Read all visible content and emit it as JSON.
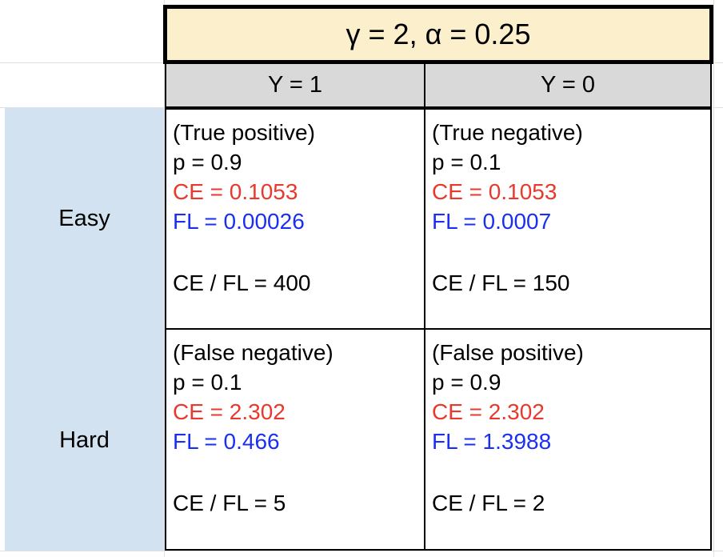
{
  "title": "γ = 2, α = 0.25",
  "columns": [
    {
      "label": "Y = 1"
    },
    {
      "label": "Y = 0"
    }
  ],
  "rows": [
    {
      "label": "Easy",
      "cells": [
        {
          "case": "(True positive)",
          "p": "p = 0.9",
          "ce": "CE = 0.1053",
          "fl": "FL = 0.00026",
          "ratio": "CE / FL = 400"
        },
        {
          "case": "(True negative)",
          "p": "p = 0.1",
          "ce": "CE = 0.1053",
          "fl": "FL = 0.0007",
          "ratio": "CE / FL = 150"
        }
      ]
    },
    {
      "label": "Hard",
      "cells": [
        {
          "case": "(False negative)",
          "p": "p = 0.1",
          "ce": "CE = 2.302",
          "fl": "FL = 0.466",
          "ratio": "CE / FL = 5"
        },
        {
          "case": "(False positive)",
          "p": "p = 0.9",
          "ce": "CE = 2.302",
          "fl": "FL = 1.3988",
          "ratio": "CE / FL = 2"
        }
      ]
    }
  ],
  "colors": {
    "title_bg": "#fbefcc",
    "header_bg": "#d9d9d9",
    "row_header_bg": "#d3e2f0",
    "ce_text": "#e8392c",
    "fl_text": "#1a2ff0"
  }
}
